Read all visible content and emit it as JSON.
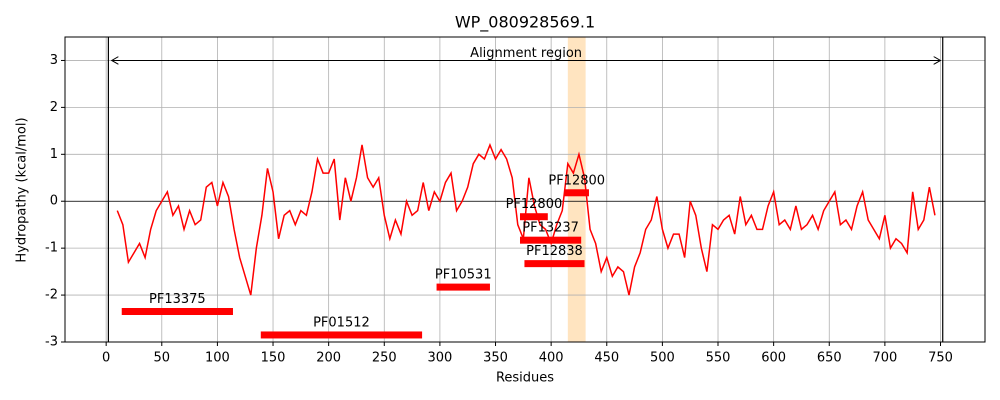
{
  "chart_data": {
    "type": "line",
    "title": "WP_080928569.1",
    "xlabel": "Residues",
    "ylabel": "Hydropathy (kcal/mol)",
    "xlim": [
      -37,
      790
    ],
    "ylim": [
      -3,
      3.5
    ],
    "xticks": [
      0,
      50,
      100,
      150,
      200,
      250,
      300,
      350,
      400,
      450,
      500,
      550,
      600,
      650,
      700,
      750
    ],
    "yticks": [
      -3,
      -2,
      -1,
      0,
      1,
      2,
      3
    ],
    "grid": true,
    "x": [
      10,
      15,
      20,
      25,
      30,
      35,
      40,
      45,
      50,
      55,
      60,
      65,
      70,
      75,
      80,
      85,
      90,
      95,
      100,
      105,
      110,
      115,
      120,
      125,
      130,
      135,
      140,
      145,
      150,
      155,
      160,
      165,
      170,
      175,
      180,
      185,
      190,
      195,
      200,
      205,
      210,
      215,
      220,
      225,
      230,
      235,
      240,
      245,
      250,
      255,
      260,
      265,
      270,
      275,
      280,
      285,
      290,
      295,
      300,
      305,
      310,
      315,
      320,
      325,
      330,
      335,
      340,
      345,
      350,
      355,
      360,
      365,
      370,
      375,
      380,
      385,
      390,
      395,
      400,
      405,
      410,
      415,
      420,
      425,
      430,
      435,
      440,
      445,
      450,
      455,
      460,
      465,
      470,
      475,
      480,
      485,
      490,
      495,
      500,
      505,
      510,
      515,
      520,
      525,
      530,
      535,
      540,
      545,
      550,
      555,
      560,
      565,
      570,
      575,
      580,
      585,
      590,
      595,
      600,
      605,
      610,
      615,
      620,
      625,
      630,
      635,
      640,
      645,
      650,
      655,
      660,
      665,
      670,
      675,
      680,
      685,
      690,
      695,
      700,
      705,
      710,
      715,
      720,
      725,
      730,
      735,
      740,
      745
    ],
    "series": [
      {
        "color": "#ff0000",
        "values": [
          -0.2,
          -0.5,
          -1.3,
          -1.1,
          -0.9,
          -1.2,
          -0.6,
          -0.2,
          0.0,
          0.2,
          -0.3,
          -0.1,
          -0.6,
          -0.2,
          -0.5,
          -0.4,
          0.3,
          0.4,
          -0.1,
          0.4,
          0.1,
          -0.6,
          -1.2,
          -1.6,
          -2.0,
          -1.0,
          -0.3,
          0.7,
          0.2,
          -0.8,
          -0.3,
          -0.2,
          -0.5,
          -0.2,
          -0.3,
          0.2,
          0.9,
          0.6,
          0.6,
          0.9,
          -0.4,
          0.5,
          0.0,
          0.5,
          1.2,
          0.5,
          0.3,
          0.5,
          -0.3,
          -0.8,
          -0.4,
          -0.7,
          0.0,
          -0.3,
          -0.2,
          0.4,
          -0.2,
          0.2,
          0.0,
          0.4,
          0.6,
          -0.2,
          0.0,
          0.3,
          0.8,
          1.0,
          0.9,
          1.2,
          0.9,
          1.1,
          0.9,
          0.5,
          -0.5,
          -0.8,
          0.5,
          -0.1,
          -0.5,
          -0.6,
          -0.9,
          -0.5,
          -0.2,
          0.8,
          0.6,
          1.0,
          0.5,
          -0.6,
          -0.9,
          -1.5,
          -1.2,
          -1.6,
          -1.4,
          -1.5,
          -2.0,
          -1.4,
          -1.1,
          -0.6,
          -0.4,
          0.1,
          -0.6,
          -1.0,
          -0.7,
          -0.7,
          -1.2,
          0.0,
          -0.3,
          -1.0,
          -1.5,
          -0.5,
          -0.6,
          -0.4,
          -0.3,
          -0.7,
          0.1,
          -0.5,
          -0.3,
          -0.6,
          -0.6,
          -0.1,
          0.2,
          -0.5,
          -0.4,
          -0.6,
          -0.1,
          -0.6,
          -0.5,
          -0.3,
          -0.6,
          -0.2,
          0.0,
          0.2,
          -0.5,
          -0.4,
          -0.6,
          -0.1,
          0.2,
          -0.4,
          -0.6,
          -0.8,
          -0.3,
          -1.0,
          -0.8,
          -0.9,
          -1.1,
          0.2,
          -0.6,
          -0.4,
          0.3,
          -0.3
        ]
      }
    ],
    "domain_color": "#ff0000",
    "domains": [
      {
        "name": "PF13375",
        "start": 14,
        "end": 114,
        "y": -2.35
      },
      {
        "name": "PF01512",
        "start": 139,
        "end": 284,
        "y": -2.85
      },
      {
        "name": "PF10531",
        "start": 297,
        "end": 345,
        "y": -1.83
      },
      {
        "name": "PF12838",
        "start": 376,
        "end": 430,
        "y": -1.33
      },
      {
        "name": "PF13237",
        "start": 372,
        "end": 427,
        "y": -0.83
      },
      {
        "name": "PF12800",
        "start": 372,
        "end": 397,
        "y": -0.33
      },
      {
        "name": "PF12800",
        "start": 412,
        "end": 434,
        "y": 0.18
      }
    ],
    "highlight": {
      "start": 415,
      "end": 431,
      "color": "#ffe4c0"
    },
    "boundaries": [
      2,
      752
    ],
    "alignment": {
      "label": "Alignment region",
      "start": 5,
      "end": 750,
      "y": 3
    }
  }
}
